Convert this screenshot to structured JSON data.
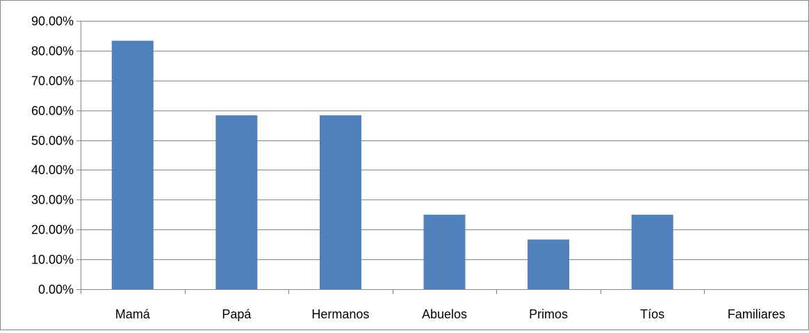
{
  "chart_data": {
    "type": "bar",
    "title": "",
    "xlabel": "",
    "ylabel": "",
    "categories": [
      "Mamá",
      "Papá",
      "Hermanos",
      "Abuelos",
      "Primos",
      "Tíos",
      "Familiares"
    ],
    "values": [
      83.33,
      58.33,
      58.33,
      25.0,
      16.67,
      25.0,
      0.0
    ],
    "ylim": [
      0,
      90
    ],
    "yticks": [
      0,
      10,
      20,
      30,
      40,
      50,
      60,
      70,
      80,
      90
    ],
    "ytick_labels": [
      "0.00%",
      "10.00%",
      "20.00%",
      "30.00%",
      "40.00%",
      "50.00%",
      "60.00%",
      "70.00%",
      "80.00%",
      "90.00%"
    ],
    "grid": true,
    "legend": "none",
    "bar_color": "#4F81BD",
    "grid_color": "#868686"
  }
}
